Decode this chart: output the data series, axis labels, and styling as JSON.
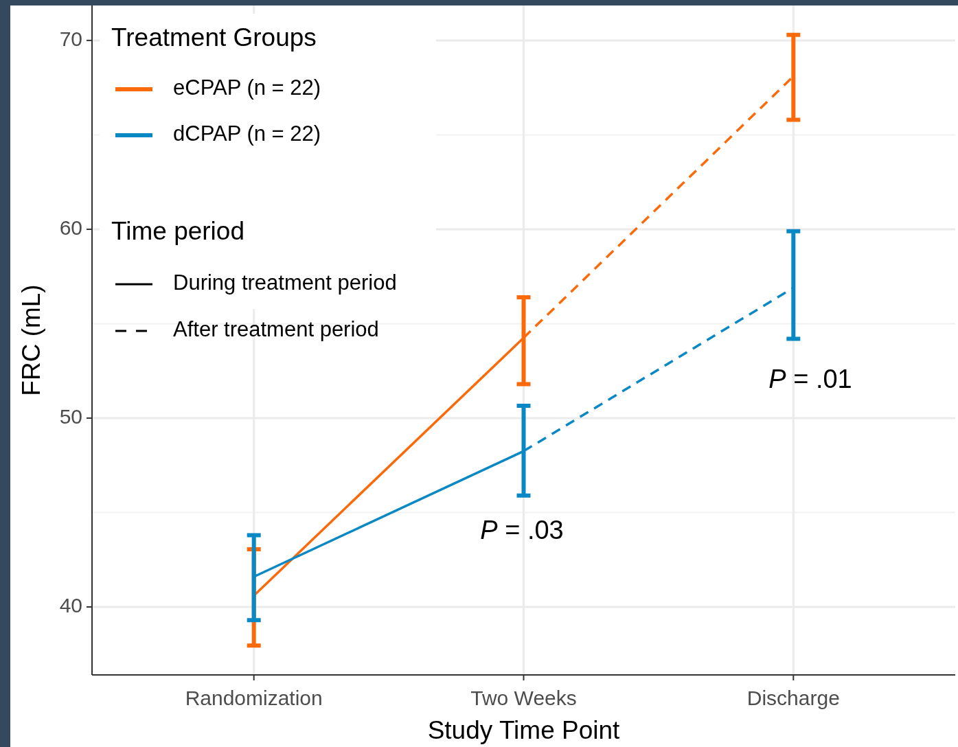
{
  "chart_data": {
    "type": "line",
    "xlabel": "Study Time Point",
    "ylabel": "FRC (mL)",
    "legend_title": "Treatment Groups",
    "legend": "top left",
    "grid": true,
    "categories": [
      "Randomization",
      "Two Weeks",
      "Discharge"
    ],
    "ylim": [
      36.4,
      71.85
    ],
    "yticks": [
      40,
      50,
      60,
      70
    ],
    "series": [
      {
        "name": "eCPAP (n = 22)",
        "color": "#fa6a0a",
        "line_style": [
          "solid",
          "dashed"
        ],
        "values": [
          40.6,
          54.25,
          68.1
        ],
        "errors": [
          [
            37.95,
            43.05
          ],
          [
            51.8,
            56.4
          ],
          [
            65.8,
            70.3
          ]
        ]
      },
      {
        "name": "dCPAP (n = 22)",
        "color": "#0a88c4",
        "line_style": [
          "solid",
          "dashed"
        ],
        "values": [
          41.6,
          48.25,
          56.9
        ],
        "errors": [
          [
            39.3,
            43.8
          ],
          [
            45.9,
            50.65
          ],
          [
            54.2,
            59.9
          ]
        ]
      }
    ],
    "annotations": [
      "Time period",
      "During treatment period",
      "After treatment period",
      "P = .03",
      "P = .01"
    ]
  }
}
